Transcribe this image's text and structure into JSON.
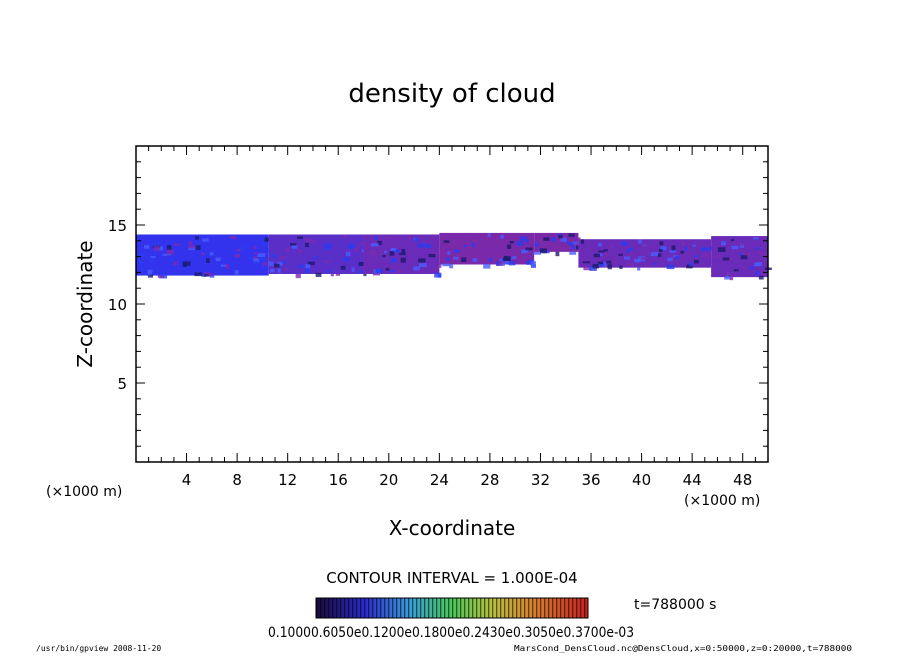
{
  "chart_data": {
    "type": "heatmap",
    "title": "density of cloud",
    "xlabel": "X-coordinate",
    "ylabel": "Z-coordinate",
    "x_unit": "(×1000 m)",
    "z_unit": "(×1000 m)",
    "xlim": [
      0,
      50
    ],
    "ylim": [
      0,
      20
    ],
    "x_ticks": [
      4,
      8,
      12,
      16,
      20,
      24,
      28,
      32,
      36,
      40,
      44,
      48
    ],
    "y_ticks": [
      5,
      10,
      15
    ],
    "contour_interval": "CONTOUR INTERVAL = 1.000E-04",
    "time_label": "t=788000 s",
    "colorbar_labels_text": "0.10000.6050e0.1200e0.1800e0.2430e0.3050e0.3700e-03",
    "cloud_band": {
      "z_range": [
        11.5,
        14.5
      ],
      "segments": [
        {
          "x_start": 0.0,
          "x_end": 10.5,
          "z_bottom": 11.8,
          "z_top": 14.4,
          "color": "#3333ee"
        },
        {
          "x_start": 10.5,
          "x_end": 18.0,
          "z_bottom": 11.9,
          "z_top": 14.4,
          "color": "#5a2fc8"
        },
        {
          "x_start": 18.0,
          "x_end": 24.0,
          "z_bottom": 11.9,
          "z_top": 14.4,
          "color": "#6a2cb8"
        },
        {
          "x_start": 24.0,
          "x_end": 31.5,
          "z_bottom": 12.5,
          "z_top": 14.5,
          "color": "#7a2aa8"
        },
        {
          "x_start": 31.5,
          "x_end": 35.0,
          "z_bottom": 13.3,
          "z_top": 14.5,
          "color": "#7a2aa8"
        },
        {
          "x_start": 35.0,
          "x_end": 45.5,
          "z_bottom": 12.3,
          "z_top": 14.1,
          "color": "#6a2cb8"
        },
        {
          "x_start": 45.5,
          "x_end": 50.0,
          "z_bottom": 11.7,
          "z_top": 14.3,
          "color": "#6a2cb8"
        }
      ]
    }
  },
  "footer": {
    "left": "/usr/bin/gpview   2008-11-20",
    "right": "MarsCond_DensCloud.nc@DensCloud,x=0:50000,z=0:20000,t=788000"
  },
  "colors": {
    "band_blue": "#2a3cf0",
    "band_purple": "#7b2bb0",
    "band_dark": "#1a1a6e"
  }
}
